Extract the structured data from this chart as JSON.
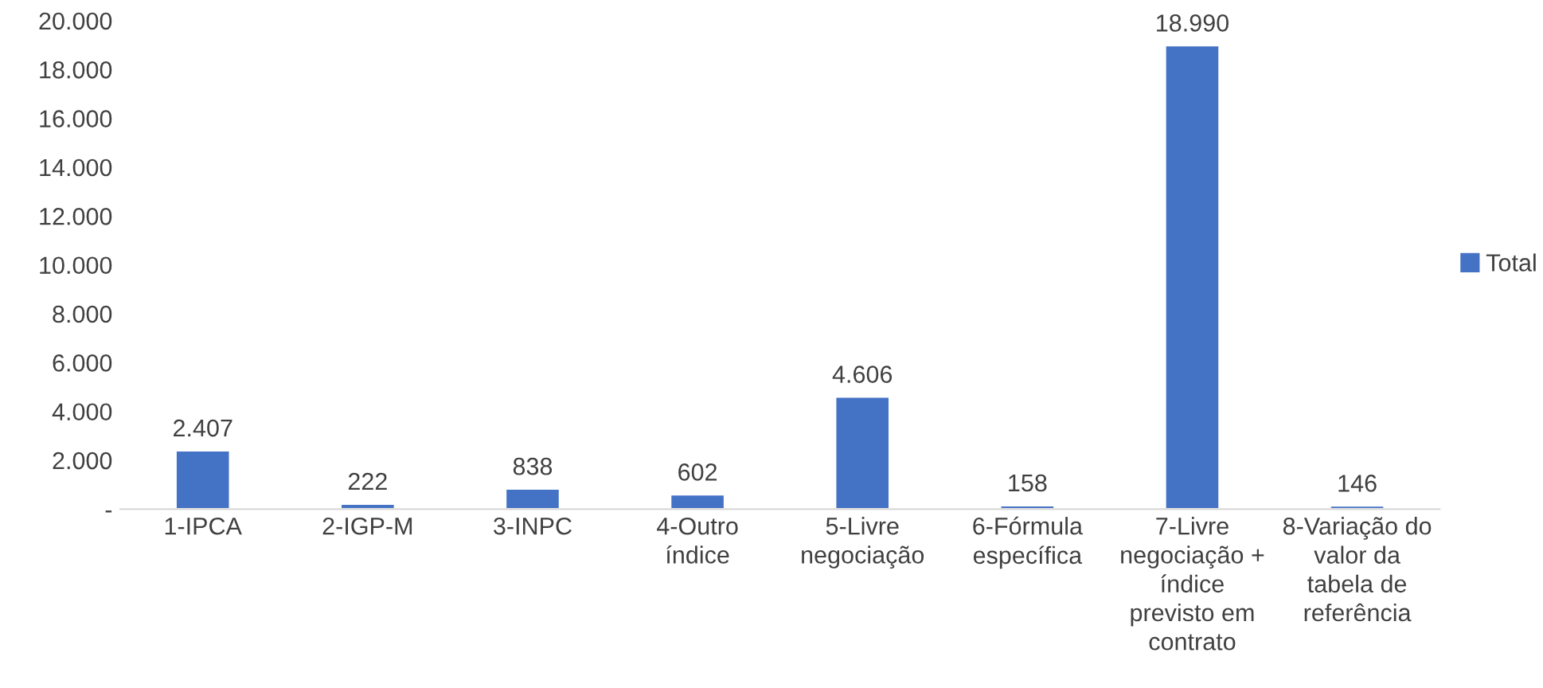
{
  "chart_data": {
    "type": "bar",
    "categories": [
      "1-IPCA",
      "2-IGP-M",
      "3-INPC",
      "4-Outro\níndice",
      "5-Livre\nnegociação",
      "6-Fórmula\nespecífica",
      "7-Livre\nnegociação +\níndice\nprevisto em\ncontrato",
      "8-Variação do\nvalor da\ntabela de\nreferência"
    ],
    "series": [
      {
        "name": "Total",
        "color": "#4472c4",
        "values": [
          2407,
          222,
          838,
          602,
          4606,
          158,
          18990,
          146
        ],
        "value_labels": [
          "2.407",
          "222",
          "838",
          "602",
          "4.606",
          "158",
          "18.990",
          "146"
        ]
      }
    ],
    "ylim": [
      0,
      20000
    ],
    "yticks": [
      {
        "value": 0,
        "label": "-"
      },
      {
        "value": 2000,
        "label": "2.000"
      },
      {
        "value": 4000,
        "label": "4.000"
      },
      {
        "value": 6000,
        "label": "6.000"
      },
      {
        "value": 8000,
        "label": "8.000"
      },
      {
        "value": 10000,
        "label": "10.000"
      },
      {
        "value": 12000,
        "label": "12.000"
      },
      {
        "value": 14000,
        "label": "14.000"
      },
      {
        "value": 16000,
        "label": "16.000"
      },
      {
        "value": 18000,
        "label": "18.000"
      },
      {
        "value": 20000,
        "label": "20.000"
      }
    ],
    "legend": "right"
  }
}
